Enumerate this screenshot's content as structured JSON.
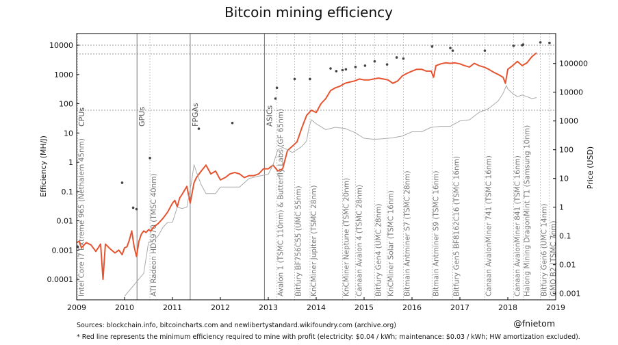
{
  "chart_data": {
    "type": "line",
    "title": "Bitcoin mining efficiency",
    "ylabel": "Efficiency (MH/J)",
    "y2label": "Price (USD)",
    "xlabel": "",
    "xlim": [
      2009.0,
      2019.0
    ],
    "ylim": [
      2e-05,
      25000
    ],
    "y2lim": [
      0.0006,
      1100000
    ],
    "x_ticks": [
      {
        "value": 2009,
        "label": "2009"
      },
      {
        "value": 2010,
        "label": "2010"
      },
      {
        "value": 2011,
        "label": "2011"
      },
      {
        "value": 2012,
        "label": "2012"
      },
      {
        "value": 2013,
        "label": "2013"
      },
      {
        "value": 2014,
        "label": "2014"
      },
      {
        "value": 2015,
        "label": "2015"
      },
      {
        "value": 2016,
        "label": "2016"
      },
      {
        "value": 2017,
        "label": "2017"
      },
      {
        "value": 2018,
        "label": "2018"
      },
      {
        "value": 2019,
        "label": "2019"
      }
    ],
    "y_ticks": [
      {
        "value": 0.0001,
        "label": "0.0001"
      },
      {
        "value": 0.001,
        "label": "0.001"
      },
      {
        "value": 0.01,
        "label": "0.01"
      },
      {
        "value": 0.1,
        "label": "0.1"
      },
      {
        "value": 1,
        "label": "1"
      },
      {
        "value": 10,
        "label": "10"
      },
      {
        "value": 100,
        "label": "100"
      },
      {
        "value": 1000,
        "label": "1000"
      },
      {
        "value": 10000,
        "label": "10000"
      }
    ],
    "y2_ticks": [
      {
        "value": 0.001,
        "label": "0.001"
      },
      {
        "value": 0.01,
        "label": "0.01"
      },
      {
        "value": 0.1,
        "label": "0.1"
      },
      {
        "value": 1,
        "label": "1"
      },
      {
        "value": 10,
        "label": "10"
      },
      {
        "value": 100,
        "label": "100"
      },
      {
        "value": 1000,
        "label": "1000"
      },
      {
        "value": 10000,
        "label": "10000"
      },
      {
        "value": 100000,
        "label": "100000"
      }
    ],
    "h_reference_lines": [
      60,
      5000,
      10000
    ],
    "eras": [
      {
        "x": 2009.0,
        "label": "CPUs",
        "line": false
      },
      {
        "x": 2010.26,
        "label": "GPUs",
        "line": true
      },
      {
        "x": 2011.37,
        "label": "FPGAs",
        "line": true
      },
      {
        "x": 2012.92,
        "label": "ASICs",
        "line": true
      }
    ],
    "hardware_points": [
      {
        "x": 2009.02,
        "y": 0.0013,
        "label": "Intel Core i7 Extreme 965 (Nethalem 45nm)"
      },
      {
        "x": 2010.53,
        "y": 1.4,
        "label": "ATI Radeon HD5970 (TMSC 40nm)"
      },
      {
        "x": 2013.18,
        "y": 350,
        "label": "Avalon 1 (TSMC 110nm) & Butterfly Labs (GF 65nm)"
      },
      {
        "x": 2013.55,
        "y": 700,
        "label": "Bitfury BF756C55 (UMC 55nm)"
      },
      {
        "x": 2013.87,
        "y": 700,
        "label": "KnCMiner Jupiter (TSMC 28nm)"
      },
      {
        "x": 2014.55,
        "y": 1400,
        "label": "KnCMiner Neptune (TSMC 20nm)"
      },
      {
        "x": 2014.82,
        "y": 1800,
        "label": "Canaan Avalon 4 (TSMC 28nm)"
      },
      {
        "x": 2015.22,
        "y": 2800,
        "label": "Bitfury Gen4 (UMC 28nm)"
      },
      {
        "x": 2015.48,
        "y": 2200,
        "label": "KnCMiner Solar (TSMC 16nm)"
      },
      {
        "x": 2015.82,
        "y": 3500,
        "label": "Bitmain Antminer S7 (TSMC 28nm)"
      },
      {
        "x": 2016.42,
        "y": 9000,
        "label": "Bitmain Antminer S9 (TSMC 16nm)"
      },
      {
        "x": 2016.85,
        "y": 6500,
        "label": "Bitfury Gen5 BF8162C16 (TSMC 16nm)"
      },
      {
        "x": 2017.52,
        "y": 6500,
        "label": "Canaan AvalonMiner 741 (TSMC 16nm)"
      },
      {
        "x": 2018.12,
        "y": 9500,
        "label": "Canaan AvalonMiner 841 (TSMC 16nm)"
      },
      {
        "x": 2018.32,
        "y": 10500,
        "label": "Halong Mining DragonMint T1 (Samsung 10nm)"
      },
      {
        "x": 2018.68,
        "y": 12500,
        "label": "Bitfury Gen6 (UMC 14nm)"
      },
      {
        "x": 2018.87,
        "y": 12000,
        "label": "GMO B2 (TSMC 7nm)"
      }
    ],
    "other_hardware_points": [
      {
        "x": 2009.95,
        "y": 0.2
      },
      {
        "x": 2010.18,
        "y": 0.028
      },
      {
        "x": 2010.25,
        "y": 0.025
      },
      {
        "x": 2011.55,
        "y": 14
      },
      {
        "x": 2012.25,
        "y": 22
      },
      {
        "x": 2013.15,
        "y": 150
      },
      {
        "x": 2014.3,
        "y": 1600
      },
      {
        "x": 2014.42,
        "y": 1300
      },
      {
        "x": 2014.62,
        "y": 1500
      },
      {
        "x": 2015.02,
        "y": 2000
      },
      {
        "x": 2015.68,
        "y": 3800
      },
      {
        "x": 2016.8,
        "y": 8000
      },
      {
        "x": 2018.3,
        "y": 10000
      }
    ],
    "series": [
      {
        "name": "Minimum efficiency required to mine with profit",
        "color": "#e5532f",
        "axis": "left",
        "x": [
          2009.0,
          2009.05,
          2009.1,
          2009.2,
          2009.3,
          2009.4,
          2009.5,
          2009.55,
          2009.6,
          2009.7,
          2009.8,
          2009.88,
          2009.95,
          2010.0,
          2010.05,
          2010.1,
          2010.15,
          2010.2,
          2010.25,
          2010.3,
          2010.35,
          2010.4,
          2010.45,
          2010.5,
          2010.55,
          2010.6,
          2010.7,
          2010.8,
          2010.9,
          2011.0,
          2011.05,
          2011.1,
          2011.15,
          2011.2,
          2011.3,
          2011.37,
          2011.45,
          2011.5,
          2011.6,
          2011.7,
          2011.8,
          2011.9,
          2012.0,
          2012.1,
          2012.2,
          2012.3,
          2012.4,
          2012.5,
          2012.6,
          2012.7,
          2012.8,
          2012.9,
          2013.0,
          2013.1,
          2013.2,
          2013.3,
          2013.4,
          2013.5,
          2013.6,
          2013.7,
          2013.8,
          2013.9,
          2014.0,
          2014.1,
          2014.2,
          2014.3,
          2014.4,
          2014.5,
          2014.6,
          2014.7,
          2014.8,
          2014.9,
          2015.0,
          2015.1,
          2015.2,
          2015.3,
          2015.4,
          2015.5,
          2015.6,
          2015.7,
          2015.8,
          2015.9,
          2016.0,
          2016.1,
          2016.2,
          2016.3,
          2016.4,
          2016.45,
          2016.5,
          2016.6,
          2016.7,
          2016.8,
          2016.9,
          2017.0,
          2017.1,
          2017.2,
          2017.3,
          2017.4,
          2017.5,
          2017.6,
          2017.7,
          2017.8,
          2017.9,
          2017.95,
          2018.0,
          2018.1,
          2018.2,
          2018.3,
          2018.4,
          2018.5,
          2018.6
        ],
        "y": [
          0.0018,
          0.002,
          0.0012,
          0.0018,
          0.0015,
          0.0009,
          0.0016,
          0.0001,
          0.0016,
          0.0011,
          0.0008,
          0.001,
          0.0007,
          0.0012,
          0.0013,
          0.0022,
          0.0045,
          0.0013,
          0.0006,
          0.002,
          0.0035,
          0.0045,
          0.004,
          0.005,
          0.0045,
          0.006,
          0.008,
          0.012,
          0.02,
          0.04,
          0.05,
          0.03,
          0.06,
          0.08,
          0.15,
          0.04,
          0.2,
          0.3,
          0.5,
          0.8,
          0.4,
          0.5,
          0.25,
          0.3,
          0.4,
          0.45,
          0.4,
          0.3,
          0.35,
          0.35,
          0.4,
          0.6,
          0.6,
          0.8,
          0.5,
          0.6,
          2.5,
          3.5,
          5,
          15,
          40,
          60,
          50,
          100,
          150,
          280,
          350,
          400,
          500,
          550,
          600,
          700,
          650,
          650,
          700,
          750,
          700,
          650,
          500,
          600,
          900,
          1100,
          1300,
          1500,
          1500,
          1300,
          1300,
          800,
          2000,
          2300,
          2500,
          2400,
          2500,
          2300,
          2000,
          1800,
          2400,
          2000,
          1800,
          1500,
          1200,
          1000,
          800,
          500,
          1500,
          2000,
          2800,
          2000,
          2500,
          4000,
          5500
        ]
      },
      {
        "name": "Bitcoin price",
        "color": "#aaaaaa",
        "axis": "right",
        "x": [
          2010.0,
          2010.2,
          2010.4,
          2010.5,
          2010.6,
          2010.7,
          2010.8,
          2010.9,
          2011.0,
          2011.1,
          2011.2,
          2011.3,
          2011.4,
          2011.45,
          2011.5,
          2011.6,
          2011.7,
          2011.8,
          2011.9,
          2012.0,
          2012.2,
          2012.4,
          2012.6,
          2012.8,
          2013.0,
          2013.1,
          2013.2,
          2013.3,
          2013.4,
          2013.5,
          2013.6,
          2013.7,
          2013.8,
          2013.85,
          2013.9,
          2014.0,
          2014.2,
          2014.4,
          2014.6,
          2014.8,
          2015.0,
          2015.2,
          2015.4,
          2015.6,
          2015.8,
          2016.0,
          2016.2,
          2016.4,
          2016.6,
          2016.8,
          2017.0,
          2017.2,
          2017.4,
          2017.6,
          2017.8,
          2017.9,
          2017.97,
          2018.0,
          2018.1,
          2018.2,
          2018.3,
          2018.4,
          2018.5,
          2018.6
        ],
        "y": [
          0.0008,
          0.002,
          0.005,
          0.06,
          0.07,
          0.1,
          0.2,
          0.3,
          0.3,
          1,
          0.9,
          1,
          8,
          30,
          17,
          6,
          3,
          3,
          3,
          5,
          5,
          5,
          10,
          12,
          14,
          30,
          100,
          120,
          100,
          80,
          100,
          130,
          200,
          600,
          1100,
          800,
          500,
          600,
          550,
          400,
          250,
          230,
          240,
          260,
          300,
          420,
          420,
          600,
          650,
          650,
          1000,
          1100,
          2000,
          2700,
          5000,
          9000,
          17000,
          13000,
          9000,
          7000,
          8000,
          7000,
          6000,
          6500
        ]
      }
    ]
  },
  "sources_note": "Sources: blockchain.info, bitcoincharts.com and newlibertystandard.wikifoundry.com (archive.org)",
  "footnote": "* Red line represents the minimum efficiency required to mine with profit (electricity: $0.04 / kWh; maintenance: $0.03 / kWh; HW amortization excluded).",
  "handle": "@fnietom",
  "colors": {
    "red": "#e5532f",
    "gray": "#aaaaaa",
    "dots": "#444444"
  }
}
